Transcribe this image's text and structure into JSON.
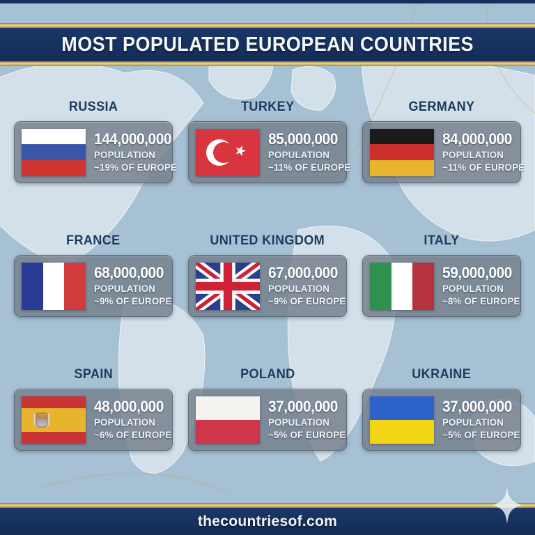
{
  "header": {
    "title": "MOST POPULATED EUROPEAN COUNTRIES"
  },
  "footer": {
    "site": "thecountriesof.com"
  },
  "labels": {
    "population": "POPULATION"
  },
  "colors": {
    "navy_band": "#16325e",
    "gold": "#d9bc6b",
    "ocean": "#a6c0d4",
    "land": "#c6d5e1",
    "card_panel": "rgba(116,126,139,0.82)",
    "country_name_text": "#1c3a60",
    "card_text": "#ffffff"
  },
  "icons": {
    "sparkle": "four-point-star"
  },
  "countries": [
    {
      "name": "RUSSIA",
      "population": "144,000,000",
      "share": "~19% OF EUROPE",
      "flag": {
        "type": "h",
        "colors": [
          "#ffffff",
          "#3a57a7",
          "#cf352e"
        ]
      }
    },
    {
      "name": "TURKEY",
      "population": "85,000,000",
      "share": "~11% OF EUROPE",
      "flag": {
        "type": "turkey",
        "colors": [
          "#d8353f",
          "#ffffff"
        ]
      }
    },
    {
      "name": "GERMANY",
      "population": "84,000,000",
      "share": "~11% OF EUROPE",
      "flag": {
        "type": "h",
        "colors": [
          "#1b1b1b",
          "#ce2e2e",
          "#e9b52a"
        ]
      }
    },
    {
      "name": "FRANCE",
      "population": "68,000,000",
      "share": "~9% OF EUROPE",
      "flag": {
        "type": "v",
        "colors": [
          "#2a3b96",
          "#ffffff",
          "#d23b3b"
        ]
      }
    },
    {
      "name": "UNITED KINGDOM",
      "population": "67,000,000",
      "share": "~9% OF EUROPE",
      "flag": {
        "type": "uk",
        "colors": [
          "#2b3f8c",
          "#ffffff",
          "#ce2135"
        ]
      }
    },
    {
      "name": "ITALY",
      "population": "59,000,000",
      "share": "~8% OF EUROPE",
      "flag": {
        "type": "v",
        "colors": [
          "#2f9150",
          "#ffffff",
          "#b5333f"
        ]
      }
    },
    {
      "name": "SPAIN",
      "population": "48,000,000",
      "share": "~6% OF EUROPE",
      "flag": {
        "type": "spain",
        "colors": [
          "#c93434",
          "#e8b42c"
        ]
      }
    },
    {
      "name": "POLAND",
      "population": "37,000,000",
      "share": "~5% OF EUROPE",
      "flag": {
        "type": "h",
        "colors": [
          "#f5f3f0",
          "#d0364a"
        ]
      }
    },
    {
      "name": "UKRAINE",
      "population": "37,000,000",
      "share": "~5% OF EUROPE",
      "flag": {
        "type": "h",
        "colors": [
          "#2c63c8",
          "#f2d513"
        ]
      }
    }
  ]
}
